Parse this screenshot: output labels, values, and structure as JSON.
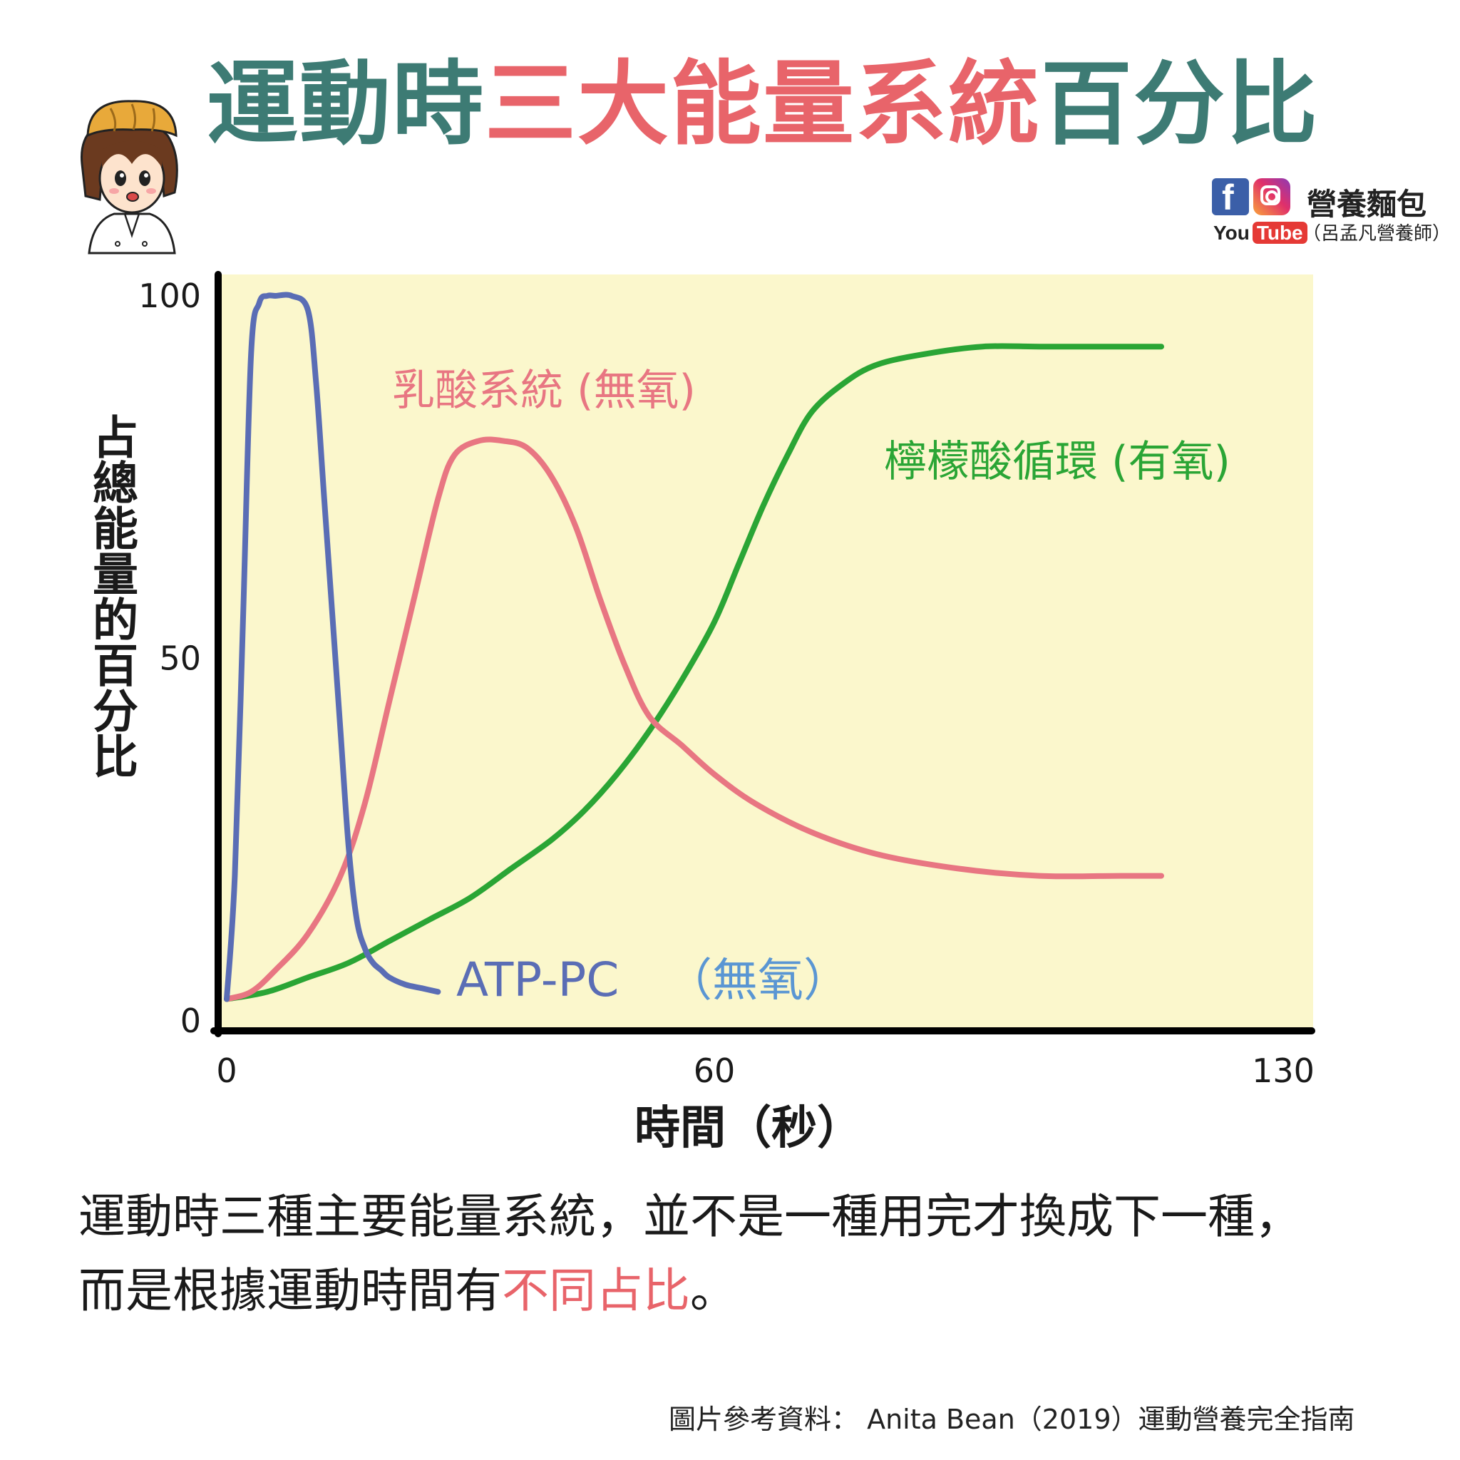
{
  "title": {
    "part1": "運動時",
    "part2": "三大能量系統",
    "part3": "百分比"
  },
  "colors": {
    "teal": "#3d7b74",
    "red": "#e8646a",
    "blue": "#5a6db5",
    "light_blue": "#5a96d3",
    "green": "#2aa535",
    "pink": "#e87682",
    "plot_bg": "#fbf7cc"
  },
  "brand": {
    "name": "營養麵包",
    "subtitle": "（呂孟凡營養師）",
    "youtube_you": "You",
    "youtube_tube": "Tube",
    "facebook_icon": "facebook-icon",
    "instagram_icon": "instagram-icon"
  },
  "chart_data": {
    "type": "line",
    "xlabel": "時間（秒）",
    "ylabel": "占總能量的百分比",
    "xlim": [
      0,
      130
    ],
    "ylim": [
      0,
      100
    ],
    "xticks": [
      "0",
      "60",
      "130"
    ],
    "yticks": [
      "0",
      "50",
      "100"
    ],
    "grid": false,
    "series": [
      {
        "name": "ATP-PC",
        "name_suffix": "（無氧）",
        "color": "#5a6db5",
        "points": [
          [
            0,
            3
          ],
          [
            1,
            20
          ],
          [
            2,
            55
          ],
          [
            3,
            92
          ],
          [
            4,
            99
          ],
          [
            5,
            100
          ],
          [
            6,
            100
          ],
          [
            8,
            100
          ],
          [
            10,
            98
          ],
          [
            11,
            88
          ],
          [
            12,
            72
          ],
          [
            13,
            56
          ],
          [
            14,
            40
          ],
          [
            15,
            24
          ],
          [
            16,
            14
          ],
          [
            17,
            10
          ],
          [
            18,
            8
          ],
          [
            19,
            7
          ],
          [
            20,
            6
          ],
          [
            22,
            5
          ],
          [
            24,
            4.5
          ],
          [
            26,
            4
          ]
        ]
      },
      {
        "name": "乳酸系統 (無氧)",
        "color": "#e87682",
        "points": [
          [
            0,
            3
          ],
          [
            3,
            4
          ],
          [
            6,
            7
          ],
          [
            10,
            12
          ],
          [
            14,
            20
          ],
          [
            17,
            30
          ],
          [
            20,
            44
          ],
          [
            23,
            58
          ],
          [
            26,
            72
          ],
          [
            28,
            78
          ],
          [
            31,
            80
          ],
          [
            34,
            80
          ],
          [
            37,
            79
          ],
          [
            40,
            75
          ],
          [
            43,
            68
          ],
          [
            46,
            58
          ],
          [
            49,
            49
          ],
          [
            52,
            42
          ],
          [
            56,
            38
          ],
          [
            60,
            34
          ],
          [
            65,
            30
          ],
          [
            72,
            26
          ],
          [
            80,
            23
          ],
          [
            90,
            21
          ],
          [
            100,
            20
          ],
          [
            110,
            20
          ],
          [
            115,
            20
          ]
        ]
      },
      {
        "name": "檸檬酸循環 (有氧)",
        "color": "#2aa535",
        "points": [
          [
            0,
            3
          ],
          [
            5,
            4
          ],
          [
            10,
            6
          ],
          [
            15,
            8
          ],
          [
            20,
            11
          ],
          [
            25,
            14
          ],
          [
            30,
            17
          ],
          [
            35,
            21
          ],
          [
            40,
            25
          ],
          [
            44,
            29
          ],
          [
            48,
            34
          ],
          [
            52,
            40
          ],
          [
            56,
            47
          ],
          [
            60,
            55
          ],
          [
            63,
            63
          ],
          [
            66,
            71
          ],
          [
            69,
            78
          ],
          [
            72,
            84
          ],
          [
            76,
            88
          ],
          [
            80,
            90.5
          ],
          [
            86,
            92
          ],
          [
            93,
            93
          ],
          [
            100,
            93
          ],
          [
            108,
            93
          ],
          [
            115,
            93
          ]
        ]
      }
    ]
  },
  "description": {
    "line1": "運動時三種主要能量系統，並不是一種用完才換成下一種，",
    "line2_a": "而是根據運動時間有",
    "line2_b": "不同占比",
    "line2_c": "。"
  },
  "source": "圖片參考資料： Anita Bean（2019）運動營養完全指南"
}
